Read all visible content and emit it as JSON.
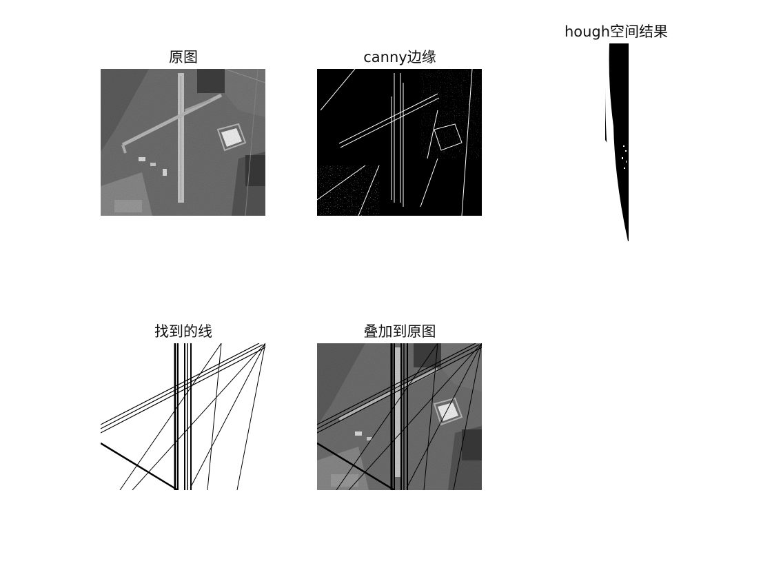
{
  "figure": {
    "panels": [
      {
        "key": "original",
        "title": "原图"
      },
      {
        "key": "edges",
        "title": "canny边缘"
      },
      {
        "key": "hough",
        "title": "hough空间结果"
      },
      {
        "key": "lines",
        "title": "找到的线"
      },
      {
        "key": "overlay",
        "title": "叠加到原图"
      }
    ]
  }
}
